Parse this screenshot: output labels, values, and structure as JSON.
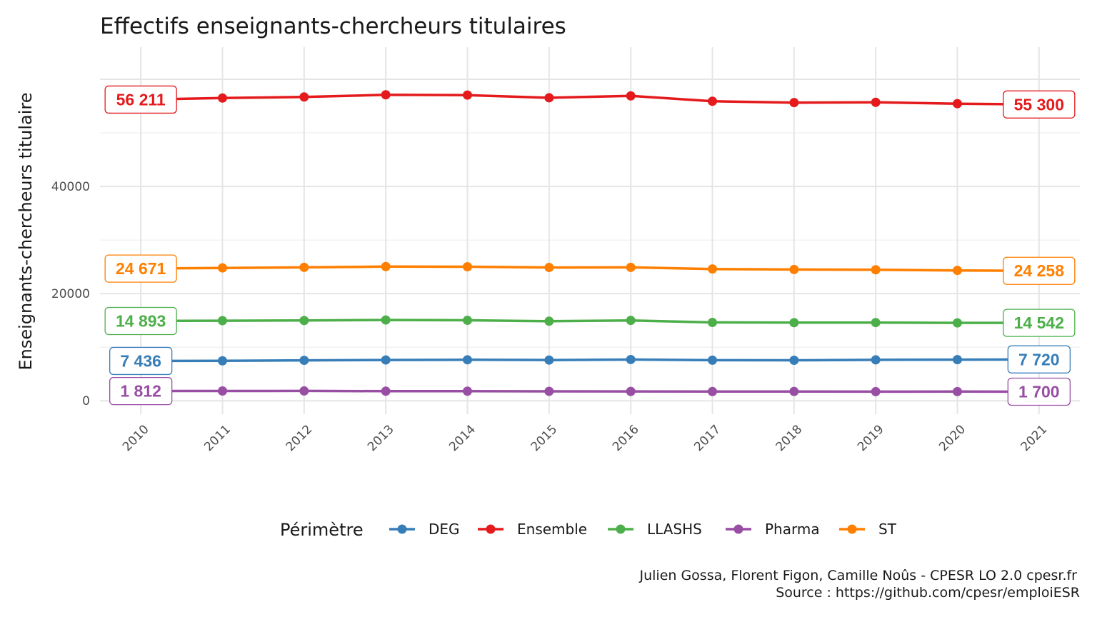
{
  "chart_data": {
    "type": "line",
    "title": "Effectifs enseignants-chercheurs titulaires",
    "xlabel": "",
    "ylabel": "Enseignants-chercheurs titulaire",
    "x": [
      2010,
      2011,
      2012,
      2013,
      2014,
      2015,
      2016,
      2017,
      2018,
      2019,
      2020,
      2021
    ],
    "xlim": [
      2009.5,
      2021.5
    ],
    "ylim": [
      -2500,
      66000
    ],
    "yticks": [
      0,
      20000,
      40000
    ],
    "ytick_labels": [
      "0",
      "20000",
      "40000"
    ],
    "grid": true,
    "legend_title": "Périmètre",
    "legend_position": "bottom",
    "series": [
      {
        "name": "DEG",
        "color": "#377eb8",
        "values": [
          7436,
          7460,
          7550,
          7620,
          7650,
          7600,
          7700,
          7580,
          7560,
          7640,
          7680,
          7720
        ],
        "start_label": "7 436",
        "end_label": "7 720"
      },
      {
        "name": "Ensemble",
        "color": "#e41a1c",
        "values": [
          56211,
          56500,
          56700,
          57100,
          57050,
          56550,
          56900,
          55900,
          55650,
          55700,
          55450,
          55300
        ],
        "start_label": "56 211",
        "end_label": "55 300"
      },
      {
        "name": "LLASHS",
        "color": "#4daf4a",
        "values": [
          14893,
          14950,
          14980,
          15080,
          15020,
          14850,
          15000,
          14620,
          14580,
          14600,
          14540,
          14542
        ],
        "start_label": "14 893",
        "end_label": "14 542"
      },
      {
        "name": "Pharma",
        "color": "#984ea3",
        "values": [
          1812,
          1830,
          1840,
          1790,
          1800,
          1770,
          1750,
          1730,
          1740,
          1710,
          1720,
          1700
        ],
        "start_label": "1 812",
        "end_label": "1 700"
      },
      {
        "name": "ST",
        "color": "#ff7f00",
        "values": [
          24671,
          24800,
          24900,
          25050,
          25020,
          24880,
          24900,
          24600,
          24500,
          24450,
          24330,
          24258
        ],
        "start_label": "24 671",
        "end_label": "24 258"
      }
    ]
  },
  "caption": {
    "line1": "Julien Gossa, Florent Figon, Camille Noûs - CPESR LO 2.0 cpesr.fr",
    "line2": "Source : https://github.com/cpesr/emploiESR"
  }
}
